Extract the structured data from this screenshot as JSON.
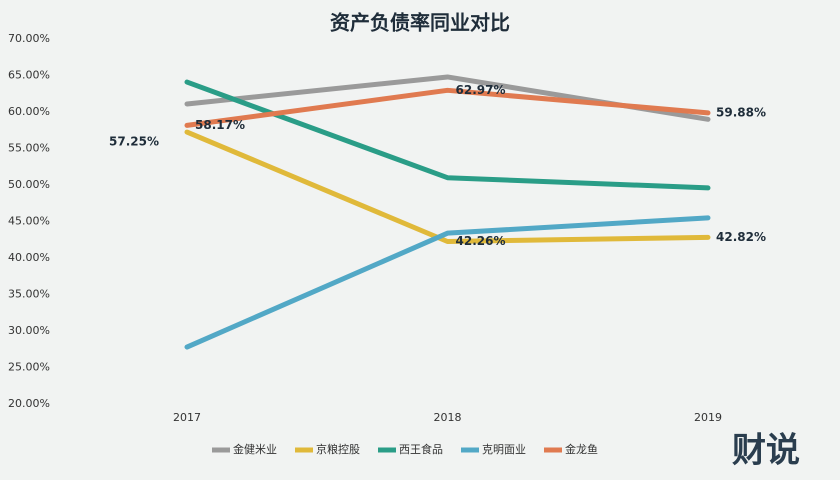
{
  "chart_data": {
    "type": "line",
    "title": "资产负债率同业对比",
    "categories": [
      "2017",
      "2018",
      "2019"
    ],
    "ylim": [
      20,
      70
    ],
    "yticks": [
      {
        "value": 20,
        "label": "20.00%"
      },
      {
        "value": 25,
        "label": "25.00%"
      },
      {
        "value": 30,
        "label": "30.00%"
      },
      {
        "value": 35,
        "label": "35.00%"
      },
      {
        "value": 40,
        "label": "40.00%"
      },
      {
        "value": 45,
        "label": "45.00%"
      },
      {
        "value": 50,
        "label": "50.00%"
      },
      {
        "value": 55,
        "label": "55.00%"
      },
      {
        "value": 60,
        "label": "60.00%"
      },
      {
        "value": 65,
        "label": "65.00%"
      },
      {
        "value": 70,
        "label": "70.00%"
      }
    ],
    "grid": false,
    "legend": "bottom",
    "series": [
      {
        "name": "金健米业",
        "color": "#9a9a9a",
        "values": [
          61.1,
          64.8,
          59.0
        ]
      },
      {
        "name": "京粮控股",
        "color": "#e0b93a",
        "values": [
          57.25,
          42.26,
          42.82
        ],
        "value_labels": [
          "57.25%",
          "42.26%",
          "42.82%"
        ]
      },
      {
        "name": "西王食品",
        "color": "#2a9d87",
        "values": [
          64.1,
          51.0,
          49.6
        ]
      },
      {
        "name": "克明面业",
        "color": "#52a8c6",
        "values": [
          27.8,
          43.4,
          45.5
        ]
      },
      {
        "name": "金龙鱼",
        "color": "#e07a50",
        "values": [
          58.17,
          62.97,
          59.88
        ],
        "value_labels": [
          "58.17%",
          "62.97%",
          "59.88%"
        ]
      }
    ],
    "logo": "财说"
  }
}
